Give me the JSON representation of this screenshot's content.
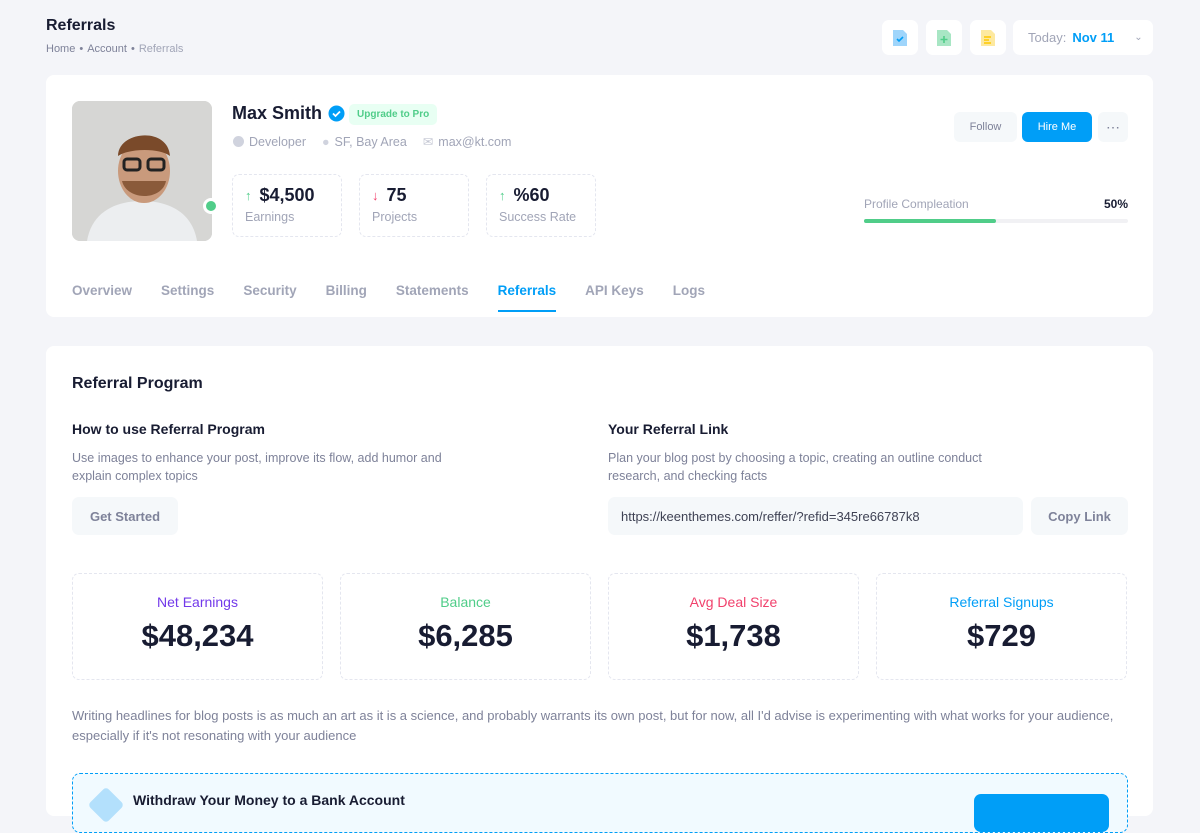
{
  "header": {
    "title": "Referrals",
    "breadcrumb": [
      "Home",
      "Account",
      "Referrals"
    ],
    "date_label": "Today:",
    "date_value": "Nov 11"
  },
  "profile": {
    "name": "Max Smith",
    "badge": "Upgrade to Pro",
    "role": "Developer",
    "location": "SF, Bay Area",
    "email": "max@kt.com",
    "stats": [
      {
        "value": "$4,500",
        "label": "Earnings",
        "trend": "up"
      },
      {
        "value": "75",
        "label": "Projects",
        "trend": "down"
      },
      {
        "value": "%60",
        "label": "Success Rate",
        "trend": "up"
      }
    ],
    "follow": "Follow",
    "hire": "Hire Me",
    "completion_label": "Profile Compleation",
    "completion_value": "50%",
    "completion": 0.5
  },
  "tabs": [
    "Overview",
    "Settings",
    "Security",
    "Billing",
    "Statements",
    "Referrals",
    "API Keys",
    "Logs"
  ],
  "active_tab": "Referrals",
  "referral": {
    "title": "Referral Program",
    "how_title": "How to use Referral Program",
    "how_text": "Use images to enhance your post, improve its flow, add humor and explain complex topics",
    "get_started": "Get Started",
    "link_title": "Your Referral Link",
    "link_text": "Plan your blog post by choosing a topic, creating an outline conduct research, and checking facts",
    "link_value": "https://keenthemes.com/reffer/?refid=345re66787k8",
    "copy": "Copy Link",
    "kpis": [
      {
        "label": "Net Earnings",
        "value": "$48,234",
        "color": "#7239ea"
      },
      {
        "label": "Balance",
        "value": "$6,285",
        "color": "#50cd89"
      },
      {
        "label": "Avg Deal Size",
        "value": "$1,738",
        "color": "#f1416c"
      },
      {
        "label": "Referral Signups",
        "value": "$729",
        "color": "#009ef7"
      }
    ],
    "paragraph": "Writing headlines for blog posts is as much an art as it is a science, and probably warrants its own post, but for now, all I'd advise is experimenting with what works for your audience, especially if it's not resonating with your audience",
    "notice_title": "Withdraw Your Money to a Bank Account"
  }
}
